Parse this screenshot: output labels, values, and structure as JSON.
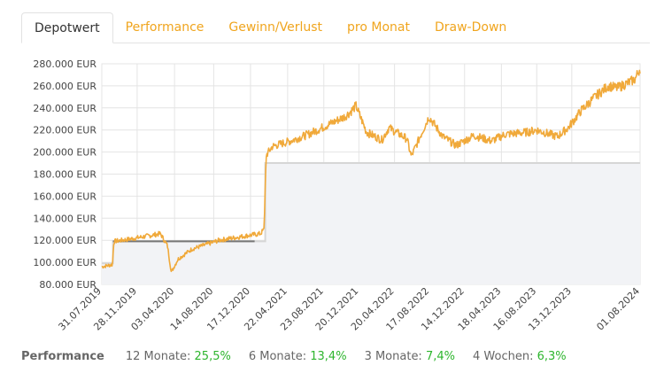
{
  "tabs": [
    {
      "label": "Depotwert",
      "active": true
    },
    {
      "label": "Performance",
      "active": false
    },
    {
      "label": "Gewinn/Verlust",
      "active": false
    },
    {
      "label": "pro Monat",
      "active": false
    },
    {
      "label": "Draw-Down",
      "active": false
    }
  ],
  "performance": {
    "title": "Performance",
    "items": [
      {
        "label": "12 Monate:",
        "value": "25,5%"
      },
      {
        "label": "6 Monate:",
        "value": "13,4%"
      },
      {
        "label": "3 Monate:",
        "value": "7,4%"
      },
      {
        "label": "4 Wochen:",
        "value": "6,3%"
      }
    ]
  },
  "colors": {
    "depot": "#f0a93a",
    "invested_dark": "#777777",
    "invested_light": "#d6d6d6",
    "area": "#f2f3f6",
    "accent": "#f0a51e",
    "positive": "#2db52d"
  },
  "chart_data": {
    "type": "line",
    "ylim": [
      80000,
      280000
    ],
    "yticks": [
      80000,
      100000,
      120000,
      140000,
      160000,
      180000,
      200000,
      220000,
      240000,
      260000,
      280000
    ],
    "ytick_labels": [
      "80.000 EUR",
      "100.000 EUR",
      "120.000 EUR",
      "140.000 EUR",
      "160.000 EUR",
      "180.000 EUR",
      "200.000 EUR",
      "220.000 EUR",
      "240.000 EUR",
      "260.000 EUR",
      "280.000 EUR"
    ],
    "xlim": [
      "2019-07-31",
      "2024-08-01"
    ],
    "xticks": [
      "2019-07-31",
      "2019-11-28",
      "2020-04-03",
      "2020-08-14",
      "2020-12-17",
      "2021-04-22",
      "2021-08-23",
      "2021-12-20",
      "2022-04-20",
      "2022-08-17",
      "2022-12-14",
      "2023-04-18",
      "2023-08-16",
      "2023-12-13",
      "2024-08-01"
    ],
    "xtick_labels": [
      "31.07.2019",
      "28.11.2019",
      "03.04.2020",
      "14.08.2020",
      "17.12.2020",
      "22.04.2021",
      "23.08.2021",
      "20.12.2021",
      "20.04.2022",
      "17.08.2022",
      "14.12.2022",
      "18.04.2023",
      "16.08.2023",
      "13.12.2023",
      "01.08.2024"
    ],
    "grid": true,
    "series": [
      {
        "key": "depot",
        "x": [
          "2019-07-31",
          "2019-09-05",
          "2019-09-10",
          "2019-11-01",
          "2019-12-15",
          "2020-02-15",
          "2020-03-10",
          "2020-03-23",
          "2020-04-15",
          "2020-06-01",
          "2020-09-01",
          "2020-12-01",
          "2021-01-20",
          "2021-02-01",
          "2021-02-08",
          "2021-03-01",
          "2021-05-01",
          "2021-07-01",
          "2021-09-01",
          "2021-11-01",
          "2021-11-20",
          "2021-12-10",
          "2022-01-15",
          "2022-03-08",
          "2022-04-01",
          "2022-06-01",
          "2022-06-16",
          "2022-08-15",
          "2022-10-01",
          "2022-11-15",
          "2023-01-15",
          "2023-03-15",
          "2023-05-01",
          "2023-07-15",
          "2023-08-15",
          "2023-10-25",
          "2023-12-01",
          "2024-01-15",
          "2024-03-01",
          "2024-04-15",
          "2024-05-15",
          "2024-06-15",
          "2024-07-15",
          "2024-08-01"
        ],
        "y": [
          96000,
          98000,
          119000,
          121000,
          123000,
          126000,
          115000,
          91000,
          103000,
          112000,
          120000,
          124000,
          126000,
          130000,
          197000,
          205000,
          210000,
          216000,
          224000,
          232000,
          236000,
          242000,
          218000,
          211000,
          222000,
          212000,
          196000,
          232000,
          214000,
          206000,
          215000,
          210000,
          216000,
          218000,
          220000,
          214000,
          222000,
          238000,
          250000,
          260000,
          258000,
          262000,
          266000,
          276000
        ]
      },
      {
        "key": "invested",
        "x": [
          "2019-07-31",
          "2019-09-07",
          "2019-09-07",
          "2020-12-31",
          "2020-12-31",
          "2021-02-05",
          "2021-02-05",
          "2024-08-01"
        ],
        "y": [
          99000,
          99000,
          119000,
          119000,
          119000,
          119000,
          190000,
          190000
        ]
      }
    ]
  }
}
